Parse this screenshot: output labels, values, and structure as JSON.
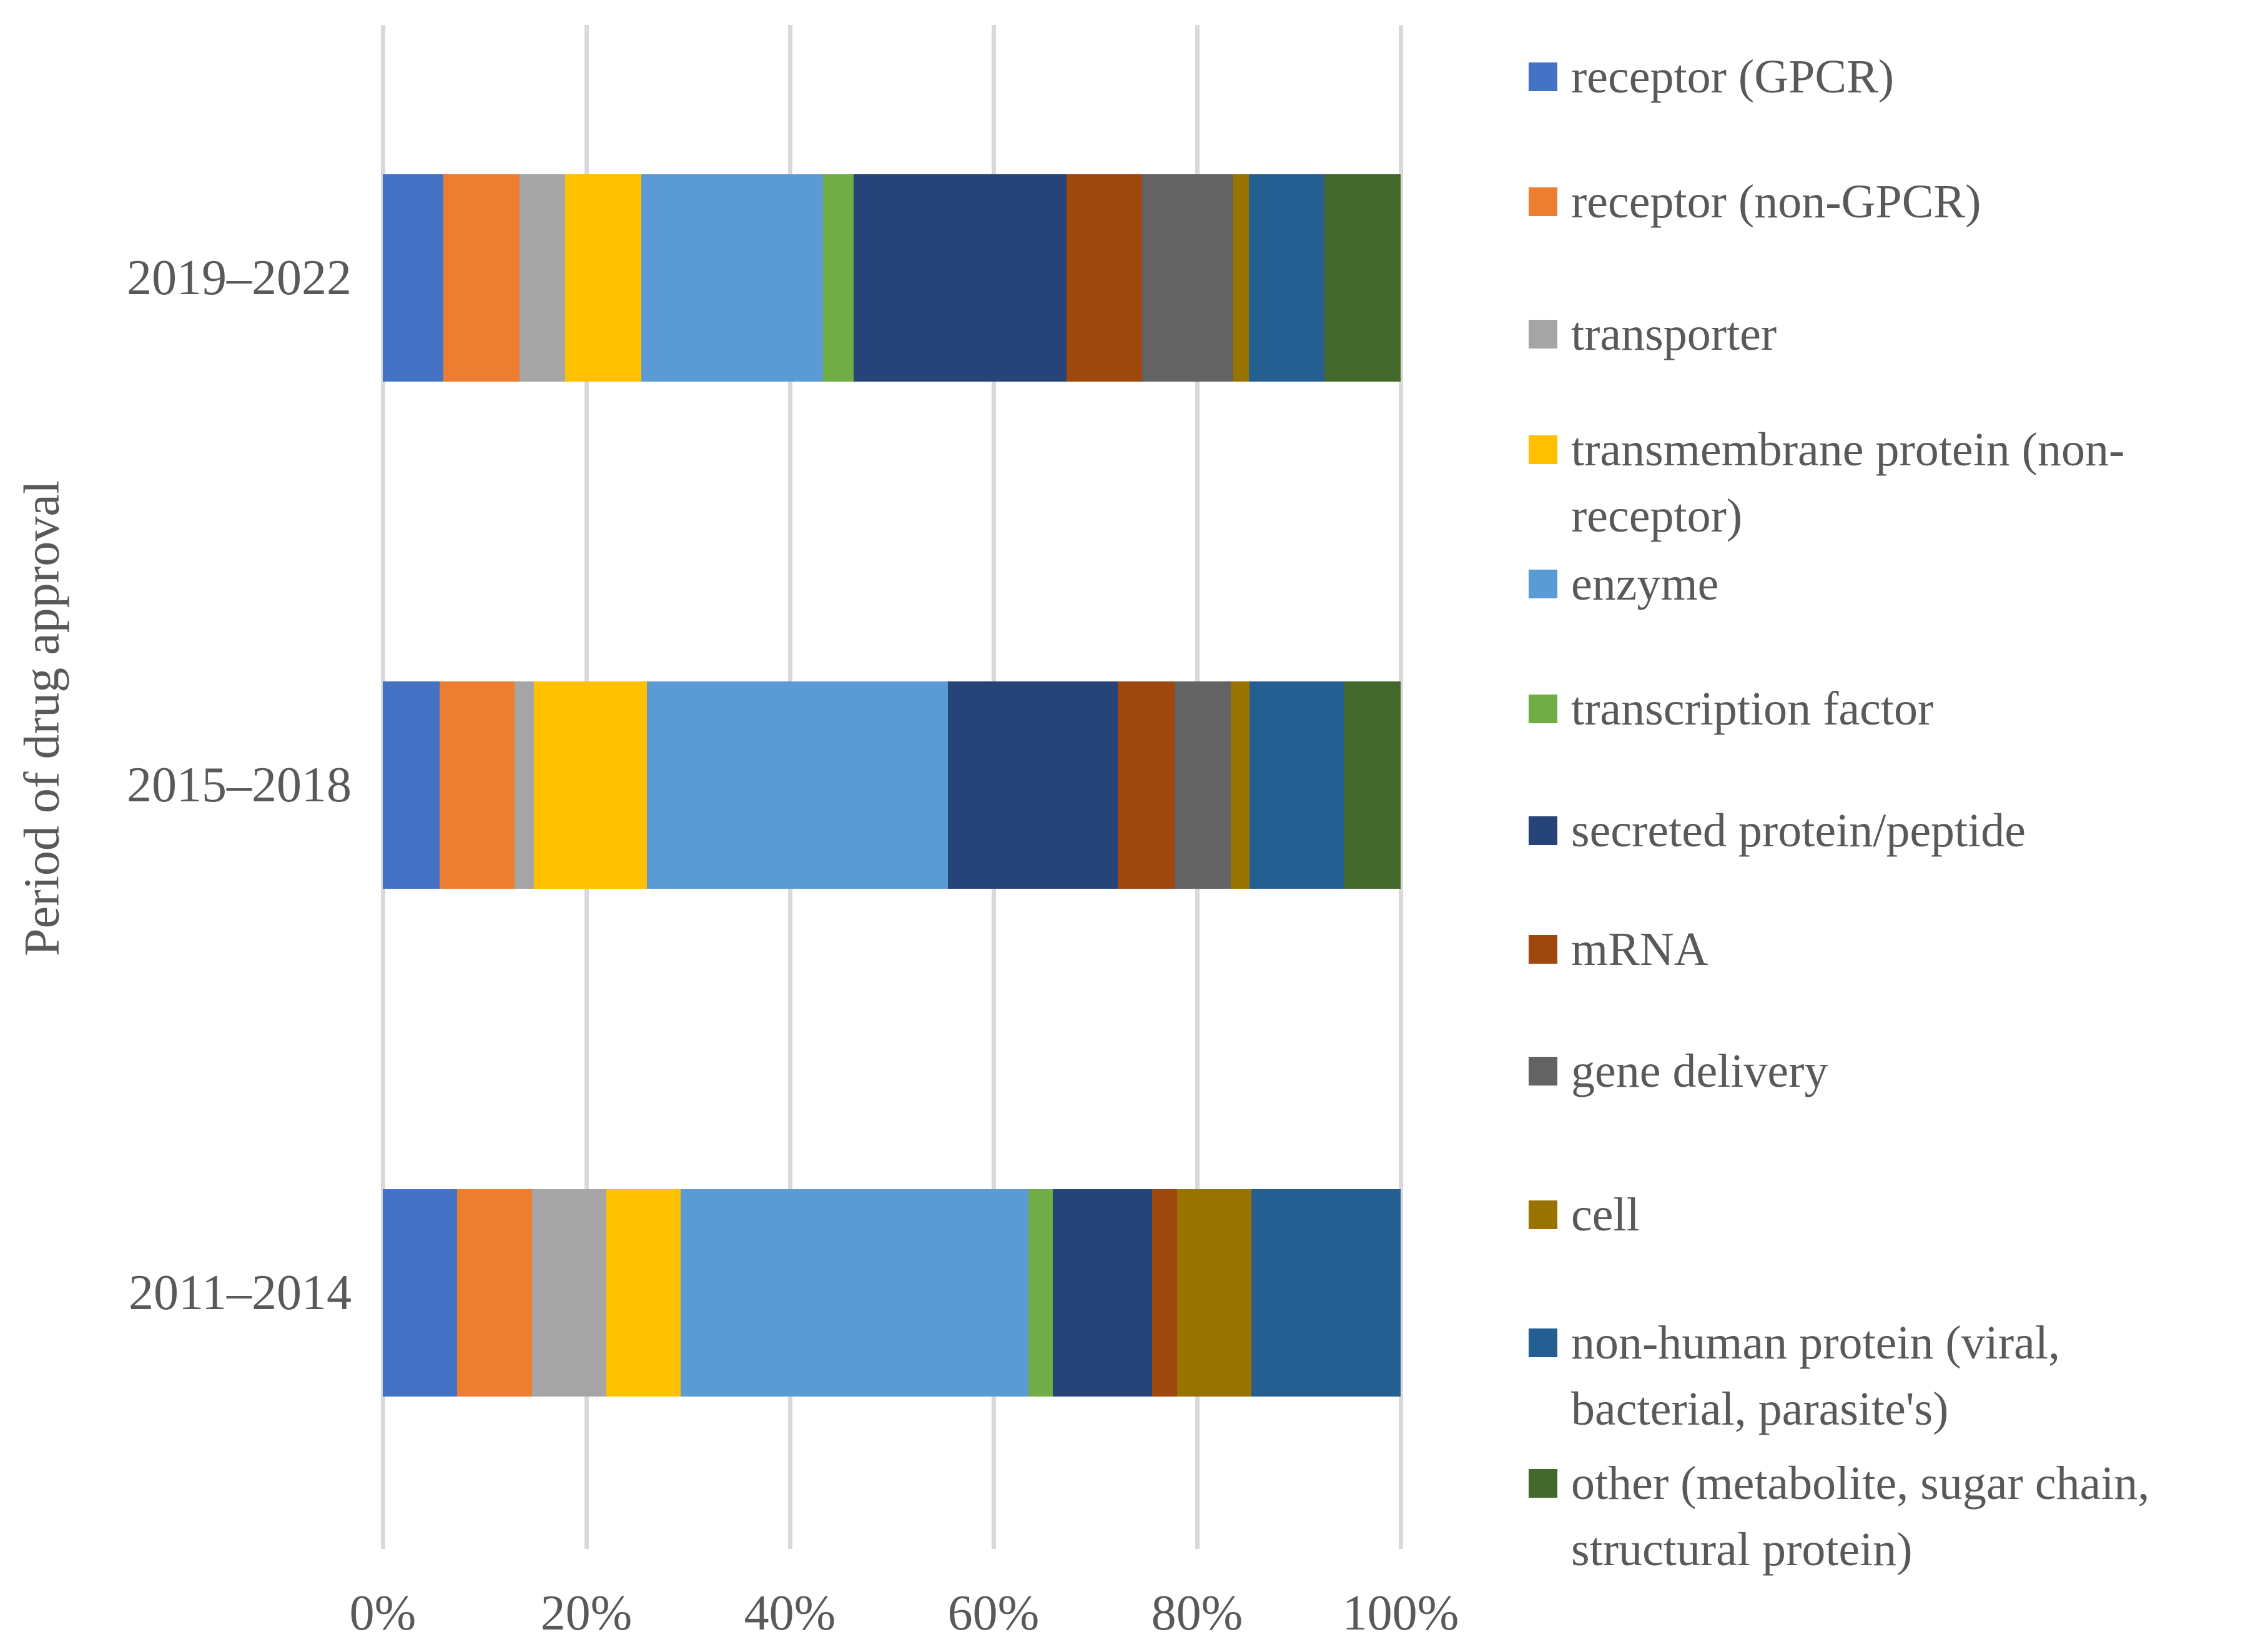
{
  "chart_data": {
    "type": "bar",
    "variant": "horizontal-stacked-100pct",
    "ylabel": "Period of drug approval",
    "categories": [
      "2019–2022",
      "2015–2018",
      "2011–2014"
    ],
    "x_tick_labels": [
      "0%",
      "20%",
      "40%",
      "60%",
      "80%",
      "100%"
    ],
    "xlim": [
      0,
      100
    ],
    "grid": "vertical-gridlines-on",
    "gridline_color": "#D9D9D9",
    "text_color": "#595959",
    "legend_position": "right",
    "series": [
      {
        "name": "receptor (GPCR)",
        "color": "#4472C4",
        "values": [
          5.97,
          5.56,
          7.32
        ]
      },
      {
        "name": "receptor (non-GPCR)",
        "color": "#ED7D31",
        "values": [
          7.46,
          7.41,
          7.32
        ]
      },
      {
        "name": "transporter",
        "color": "#A5A5A5",
        "values": [
          4.48,
          1.85,
          7.32
        ]
      },
      {
        "name": "transmembrane protein (non-receptor)",
        "color": "#FFC000",
        "values": [
          7.46,
          11.11,
          7.32
        ]
      },
      {
        "name": "enzyme",
        "color": "#5B9BD5",
        "values": [
          17.91,
          29.63,
          34.15
        ]
      },
      {
        "name": "transcription factor",
        "color": "#70AD47",
        "values": [
          2.99,
          0,
          2.44
        ]
      },
      {
        "name": "secreted protein/peptide",
        "color": "#264478",
        "values": [
          20.9,
          16.67,
          9.76
        ]
      },
      {
        "name": "mRNA",
        "color": "#9E480E",
        "values": [
          7.46,
          5.56,
          2.44
        ]
      },
      {
        "name": "gene delivery",
        "color": "#636363",
        "values": [
          8.96,
          5.56,
          0
        ]
      },
      {
        "name": "cell",
        "color": "#997300",
        "values": [
          1.49,
          1.85,
          7.32
        ]
      },
      {
        "name": "non-human protein (viral, bacterial, parasite's)",
        "color": "#255E91",
        "values": [
          7.46,
          9.26,
          14.63
        ]
      },
      {
        "name": "other (metabolite, sugar chain, structural protein)",
        "color": "#43682B",
        "values": [
          7.46,
          5.56,
          0
        ]
      }
    ],
    "legend_labels": [
      "receptor (GPCR)",
      "receptor (non-GPCR)",
      "transporter",
      "transmembrane protein (non-\nreceptor)",
      "enzyme",
      "transcription factor",
      "secreted protein/peptide",
      "mRNA",
      "gene delivery",
      "cell",
      "non-human protein (viral,\nbacterial, parasite's)",
      "other (metabolite, sugar chain,\nstructural protein)"
    ]
  }
}
